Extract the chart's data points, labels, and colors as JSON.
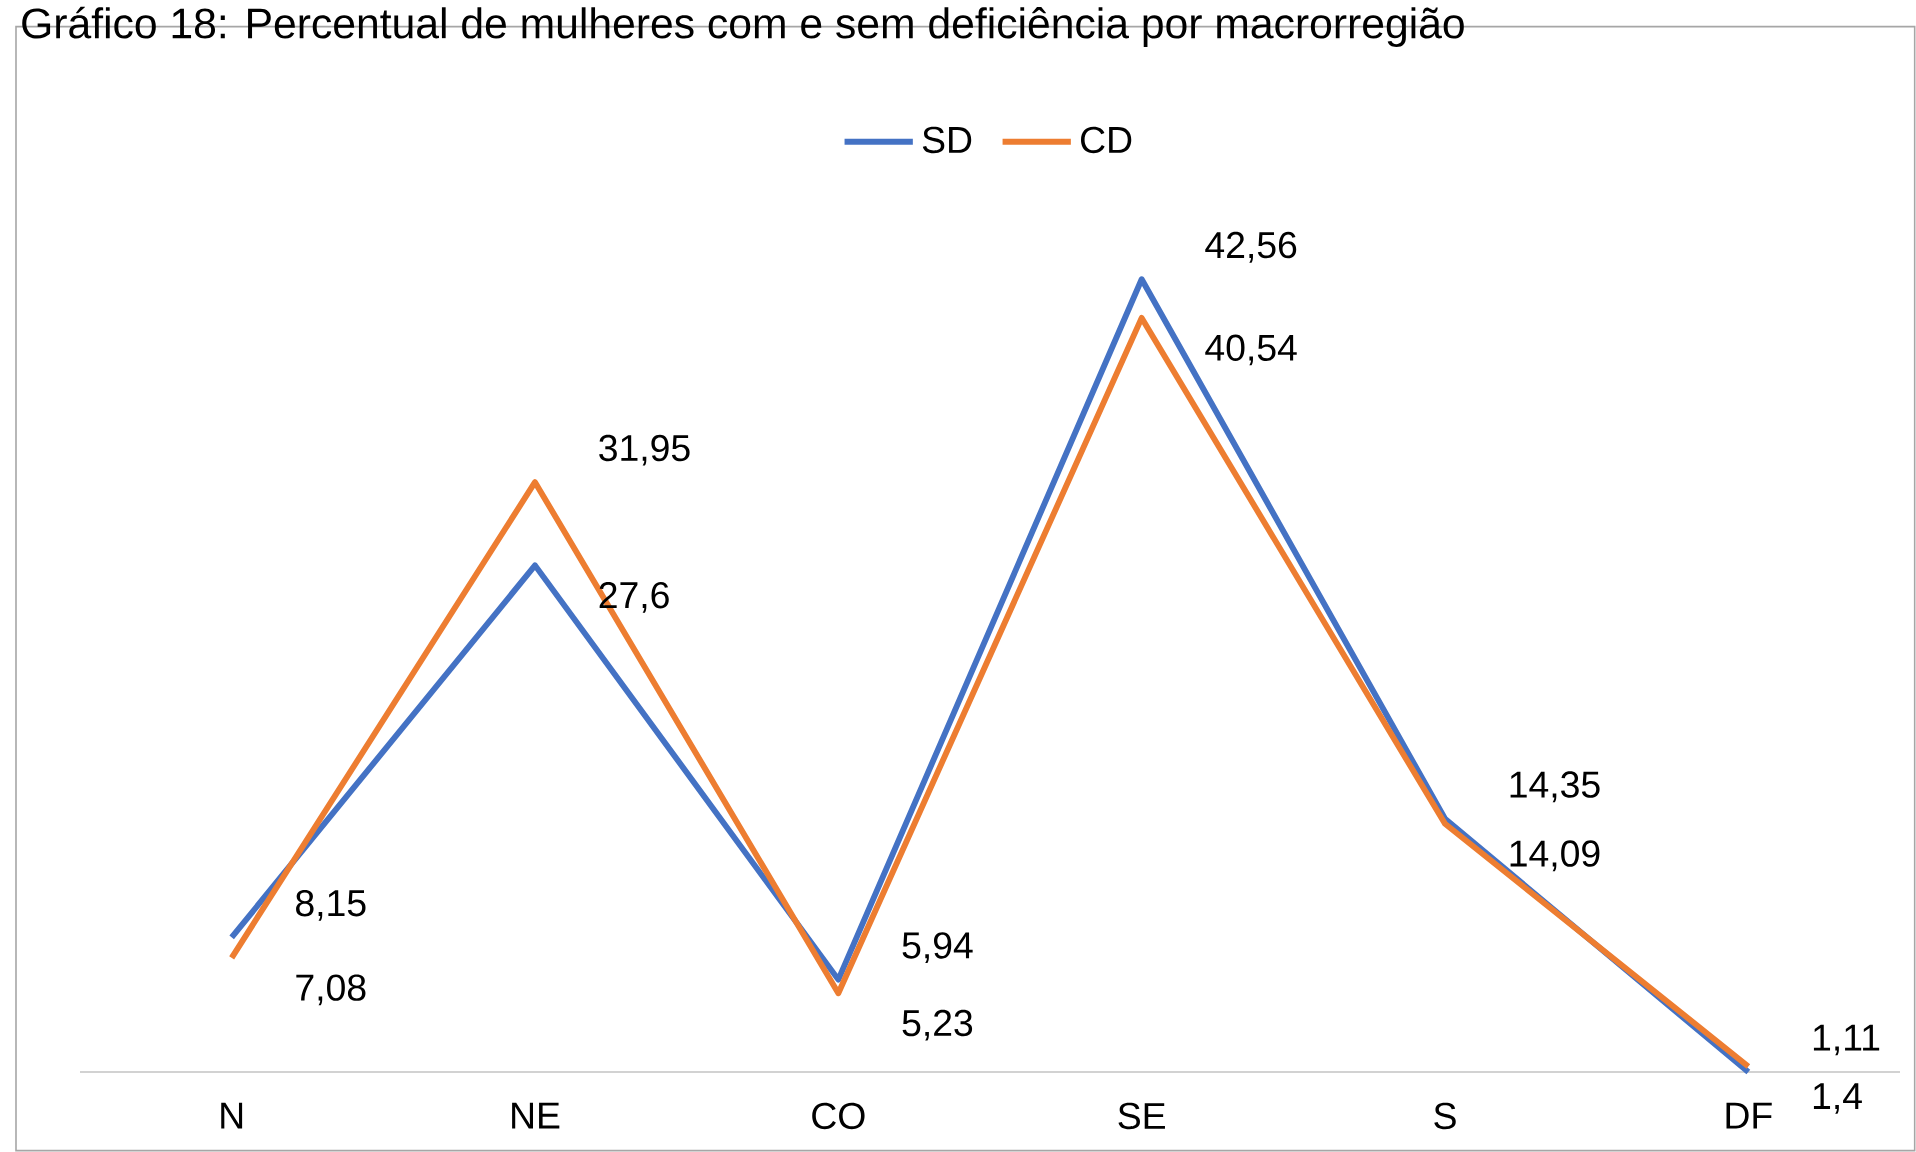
{
  "chart_data": {
    "type": "line",
    "title": "Gráfico 18: Percentual de mulheres com e sem deficiência por macrorregião",
    "categories": [
      "N",
      "NE",
      "CO",
      "SE",
      "S",
      "DF"
    ],
    "series": [
      {
        "name": "SD",
        "color": "#4472c4",
        "values": [
          8.15,
          27.6,
          5.94,
          42.56,
          14.35,
          1.11
        ],
        "value_labels": [
          "8,15",
          "27,6",
          "5,94",
          "42,56",
          "14,35",
          "1,11"
        ]
      },
      {
        "name": "CD",
        "color": "#ed7d31",
        "values": [
          7.08,
          31.95,
          5.23,
          40.54,
          14.09,
          1.4
        ],
        "value_labels": [
          "7,08",
          "31,95",
          "5,23",
          "40,54",
          "14,09",
          "1,4"
        ]
      }
    ],
    "legend": "top",
    "marker": "none",
    "line_style": "solid"
  }
}
